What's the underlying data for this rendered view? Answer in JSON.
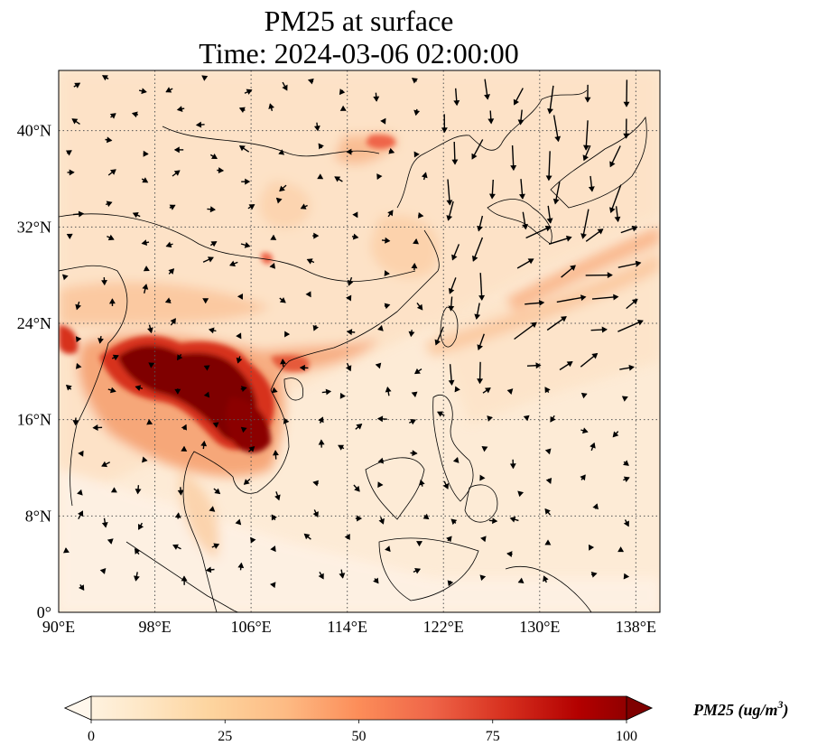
{
  "title": {
    "line1": "PM25 at surface",
    "line2": "Time: 2024-03-06 02:00:00"
  },
  "map": {
    "projection": "PlateCarree",
    "lon_range": [
      90,
      140
    ],
    "lat_range": [
      0,
      45
    ],
    "gridlines": "dotted",
    "x_ticks": [
      "90°E",
      "98°E",
      "106°E",
      "114°E",
      "122°E",
      "130°E",
      "138°E"
    ],
    "x_tick_values": [
      90,
      98,
      106,
      114,
      122,
      130,
      138
    ],
    "y_ticks": [
      "0°",
      "8°N",
      "16°N",
      "24°N",
      "32°N",
      "40°N"
    ],
    "y_tick_values": [
      0,
      8,
      16,
      24,
      32,
      40
    ],
    "field": "PM25",
    "overlay": "wind vectors"
  },
  "colorbar": {
    "label": "PM25 (ug/m",
    "label_sup": "3",
    "label_close": ")",
    "ticks": [
      "0",
      "25",
      "50",
      "75",
      "100"
    ],
    "tick_values": [
      0,
      25,
      50,
      75,
      100
    ],
    "range": [
      0,
      100
    ],
    "extend": "both",
    "colormap": "OrRd",
    "colors": [
      "#fff7ec",
      "#fee8c8",
      "#fdd49e",
      "#fdbb84",
      "#fc8d59",
      "#ef6548",
      "#d7301f",
      "#b30000",
      "#7f0000"
    ]
  }
}
